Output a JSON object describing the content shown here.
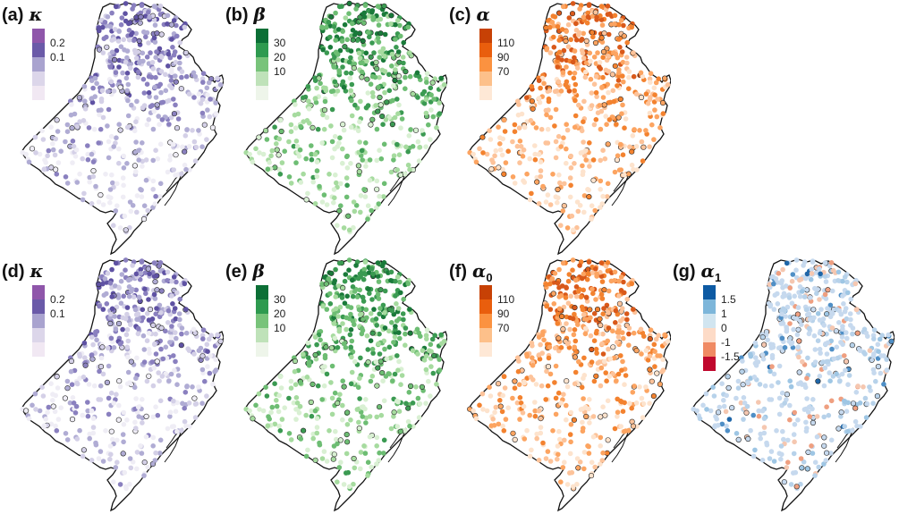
{
  "panels": [
    {
      "id": "a",
      "tag": "(a)",
      "symbol": "κ",
      "sub": "",
      "ticks": [
        "0.2",
        "0.1"
      ],
      "colors": [
        "#f1e8f3",
        "#dcd6ea",
        "#a9a3cf",
        "#6a5aa8",
        "#8f56aa"
      ],
      "point_palette": [
        "#efedf5",
        "#d4d0e7",
        "#b0acd4",
        "#8a80bf",
        "#5f52a3"
      ]
    },
    {
      "id": "b",
      "tag": "(b)",
      "symbol": "β",
      "sub": "",
      "ticks": [
        "30",
        "20",
        "10"
      ],
      "colors": [
        "#eef5ea",
        "#bfe2b9",
        "#78c37a",
        "#2e9a4f",
        "#0c6f36"
      ],
      "point_palette": [
        "#d9f0d3",
        "#a6db9f",
        "#6dbd73",
        "#3b9a52",
        "#1a7a3a"
      ]
    },
    {
      "id": "c",
      "tag": "(c)",
      "symbol": "α",
      "sub": "",
      "ticks": [
        "110",
        "90",
        "70"
      ],
      "colors": [
        "#fee8d6",
        "#fdc08a",
        "#fb9240",
        "#e95e0d",
        "#c74105"
      ],
      "point_palette": [
        "#fde3cd",
        "#fdc39a",
        "#fca461",
        "#f3822f",
        "#d9591a"
      ]
    },
    {
      "id": "d",
      "tag": "(d)",
      "symbol": "κ",
      "sub": "",
      "ticks": [
        "0.2",
        "0.1"
      ],
      "colors": [
        "#f1e8f3",
        "#dcd6ea",
        "#a9a3cf",
        "#6a5aa8",
        "#8f56aa"
      ],
      "point_palette": [
        "#efedf5",
        "#d4d0e7",
        "#b0acd4",
        "#8a80bf",
        "#5f52a3"
      ]
    },
    {
      "id": "e",
      "tag": "(e)",
      "symbol": "β",
      "sub": "",
      "ticks": [
        "30",
        "20",
        "10"
      ],
      "colors": [
        "#eef5ea",
        "#bfe2b9",
        "#78c37a",
        "#2e9a4f",
        "#0c6f36"
      ],
      "point_palette": [
        "#d9f0d3",
        "#a6db9f",
        "#6dbd73",
        "#3b9a52",
        "#1a7a3a"
      ]
    },
    {
      "id": "f",
      "tag": "(f)",
      "symbol": "α",
      "sub": "0",
      "ticks": [
        "110",
        "90",
        "70"
      ],
      "colors": [
        "#fee8d6",
        "#fdc08a",
        "#fb9240",
        "#e95e0d",
        "#c74105"
      ],
      "point_palette": [
        "#fde3cd",
        "#fdc39a",
        "#fca461",
        "#f3822f",
        "#d9591a"
      ]
    },
    {
      "id": "g",
      "tag": "(g)",
      "symbol": "α",
      "sub": "1",
      "ticks": [
        "1.5",
        "1",
        "0",
        "-1",
        "-1.5"
      ],
      "colors": [
        "#c0082d",
        "#f08a63",
        "#fddbc7",
        "#d1e5f0",
        "#7db6da",
        "#0d5aa3"
      ],
      "point_palette": [
        "#c6d9ee",
        "#b7d2ea",
        "#9ec6e4",
        "#f5c7b0",
        "#ef9f80",
        "#4f8fc6",
        "#1f66a8"
      ]
    }
  ]
}
